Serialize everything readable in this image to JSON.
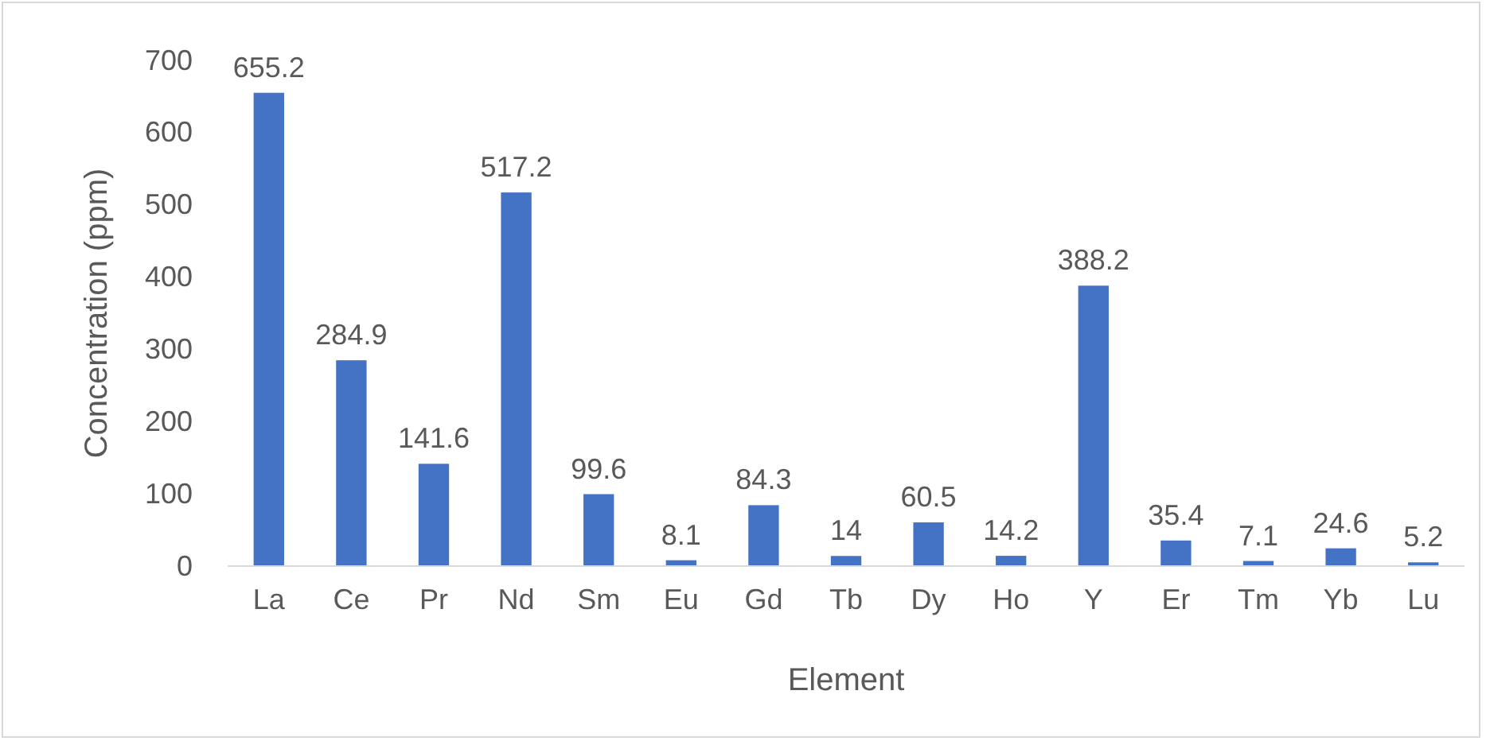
{
  "chart_data": {
    "type": "bar",
    "xlabel": "Element",
    "ylabel": "Concentration (ppm)",
    "categories": [
      "La",
      "Ce",
      "Pr",
      "Nd",
      "Sm",
      "Eu",
      "Gd",
      "Tb",
      "Dy",
      "Ho",
      "Y",
      "Er",
      "Tm",
      "Yb",
      "Lu"
    ],
    "values": [
      655.2,
      284.9,
      141.6,
      517.2,
      99.6,
      8.1,
      84.3,
      14,
      60.5,
      14.2,
      388.2,
      35.4,
      7.1,
      24.6,
      5.2
    ],
    "color": "#4472c4",
    "ylim": [
      0,
      700
    ],
    "yticks": [
      0,
      100,
      200,
      300,
      400,
      500,
      600,
      700
    ],
    "data_labels": true
  }
}
